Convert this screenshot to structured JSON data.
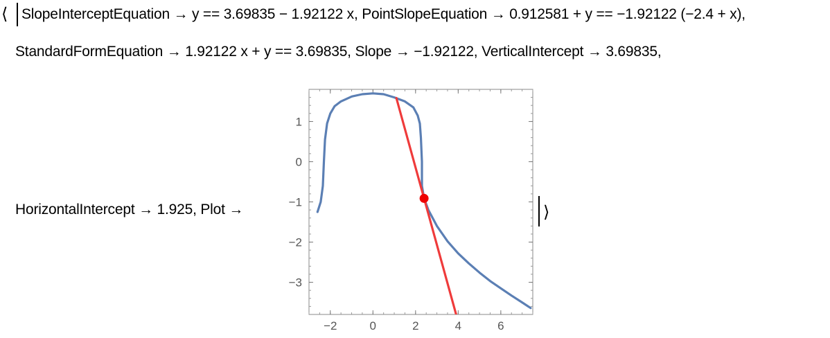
{
  "output": {
    "open_bracket": "⟨",
    "close_bracket": "⟩",
    "line1": "SlopeInterceptEquation → y == 3.69835 − 1.92122 x, PointSlopeEquation → 0.912581 + y == −1.92122 (−2.4 + x),",
    "line2": "StandardFormEquation → 1.92122 x + y == 3.69835, Slope → −1.92122, VerticalIntercept → 3.69835,",
    "line3": "HorizontalIntercept → 1.925, Plot →"
  },
  "chart_data": {
    "type": "line",
    "title": "",
    "xlabel": "",
    "ylabel": "",
    "xlim": [
      -3,
      7.5
    ],
    "ylim": [
      -3.8,
      1.8
    ],
    "x_ticks": [
      -2,
      0,
      2,
      4,
      6
    ],
    "x_tick_labels": [
      "−2",
      "0",
      "2",
      "4",
      "6"
    ],
    "y_ticks": [
      1,
      0,
      -1,
      -2,
      -3
    ],
    "y_tick_labels": [
      "1",
      "0",
      "−1",
      "−2",
      "−3"
    ],
    "grid": false,
    "colors": {
      "curve": "#5b7fb4",
      "line": "#ef3b3b",
      "point": "#ee0000"
    },
    "series": [
      {
        "kind": "curve",
        "x": [
          -2.6,
          -2.45,
          -2.35,
          -2.3,
          -2.25,
          -2.15,
          -2.0,
          -1.8,
          -1.5,
          -1.0,
          -0.5,
          0.0,
          0.5,
          1.0,
          1.5,
          1.9,
          2.1,
          2.2,
          2.25,
          2.3,
          2.3,
          2.4,
          2.6,
          3.0,
          3.5,
          4.0,
          4.5,
          5.0,
          5.5,
          6.0,
          6.5,
          7.0,
          7.4
        ],
        "y": [
          -1.25,
          -1.0,
          -0.6,
          0.0,
          0.55,
          0.95,
          1.2,
          1.38,
          1.5,
          1.62,
          1.68,
          1.7,
          1.68,
          1.6,
          1.5,
          1.35,
          1.15,
          0.95,
          0.6,
          0.0,
          -0.6,
          -0.91,
          -1.2,
          -1.6,
          -1.98,
          -2.28,
          -2.53,
          -2.76,
          -2.97,
          -3.15,
          -3.33,
          -3.5,
          -3.64
        ]
      },
      {
        "kind": "tangent-line",
        "x": [
          1.1,
          3.95
        ],
        "y": [
          1.585,
          -3.89
        ]
      }
    ],
    "point": {
      "x": 2.4,
      "y": -0.912581
    }
  }
}
